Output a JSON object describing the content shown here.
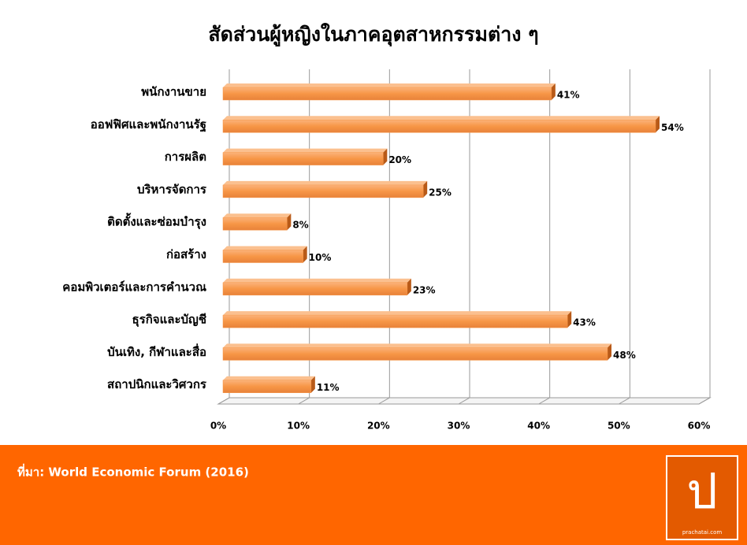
{
  "chart_data": {
    "type": "bar",
    "orientation": "horizontal",
    "title": "สัดส่วนผู้หญิงในภาคอุตสาหกรรมต่าง ๆ",
    "categories": [
      "พนักงานขาย",
      "ออฟฟิศและพนักงานรัฐ",
      "การผลิต",
      "บริหารจัดการ",
      "ติดตั้งและซ่อมบำรุง",
      "ก่อสร้าง",
      "คอมพิวเตอร์และการคำนวณ",
      "ธุรกิจและบัญชี",
      "บันเทิง, กีฬาและสื่อ",
      "สถาปนิกและวิศวกร"
    ],
    "values": [
      41,
      54,
      20,
      25,
      8,
      10,
      23,
      43,
      48,
      11
    ],
    "value_labels": [
      "41%",
      "54%",
      "20%",
      "25%",
      "8%",
      "10%",
      "23%",
      "43%",
      "48%",
      "11%"
    ],
    "color": "#f79646",
    "xlim": [
      0,
      60
    ],
    "xticks": [
      {
        "value": 0,
        "label": "0%"
      },
      {
        "value": 10,
        "label": "10%"
      },
      {
        "value": 20,
        "label": "20%"
      },
      {
        "value": 30,
        "label": "30%"
      },
      {
        "value": 40,
        "label": "40%"
      },
      {
        "value": 50,
        "label": "50%"
      },
      {
        "value": 60,
        "label": "60%"
      }
    ],
    "grid": true,
    "source": "ที่มา: World Economic Forum (2016)",
    "logo": {
      "glyph": "ป",
      "text": "prachatai.com"
    }
  }
}
